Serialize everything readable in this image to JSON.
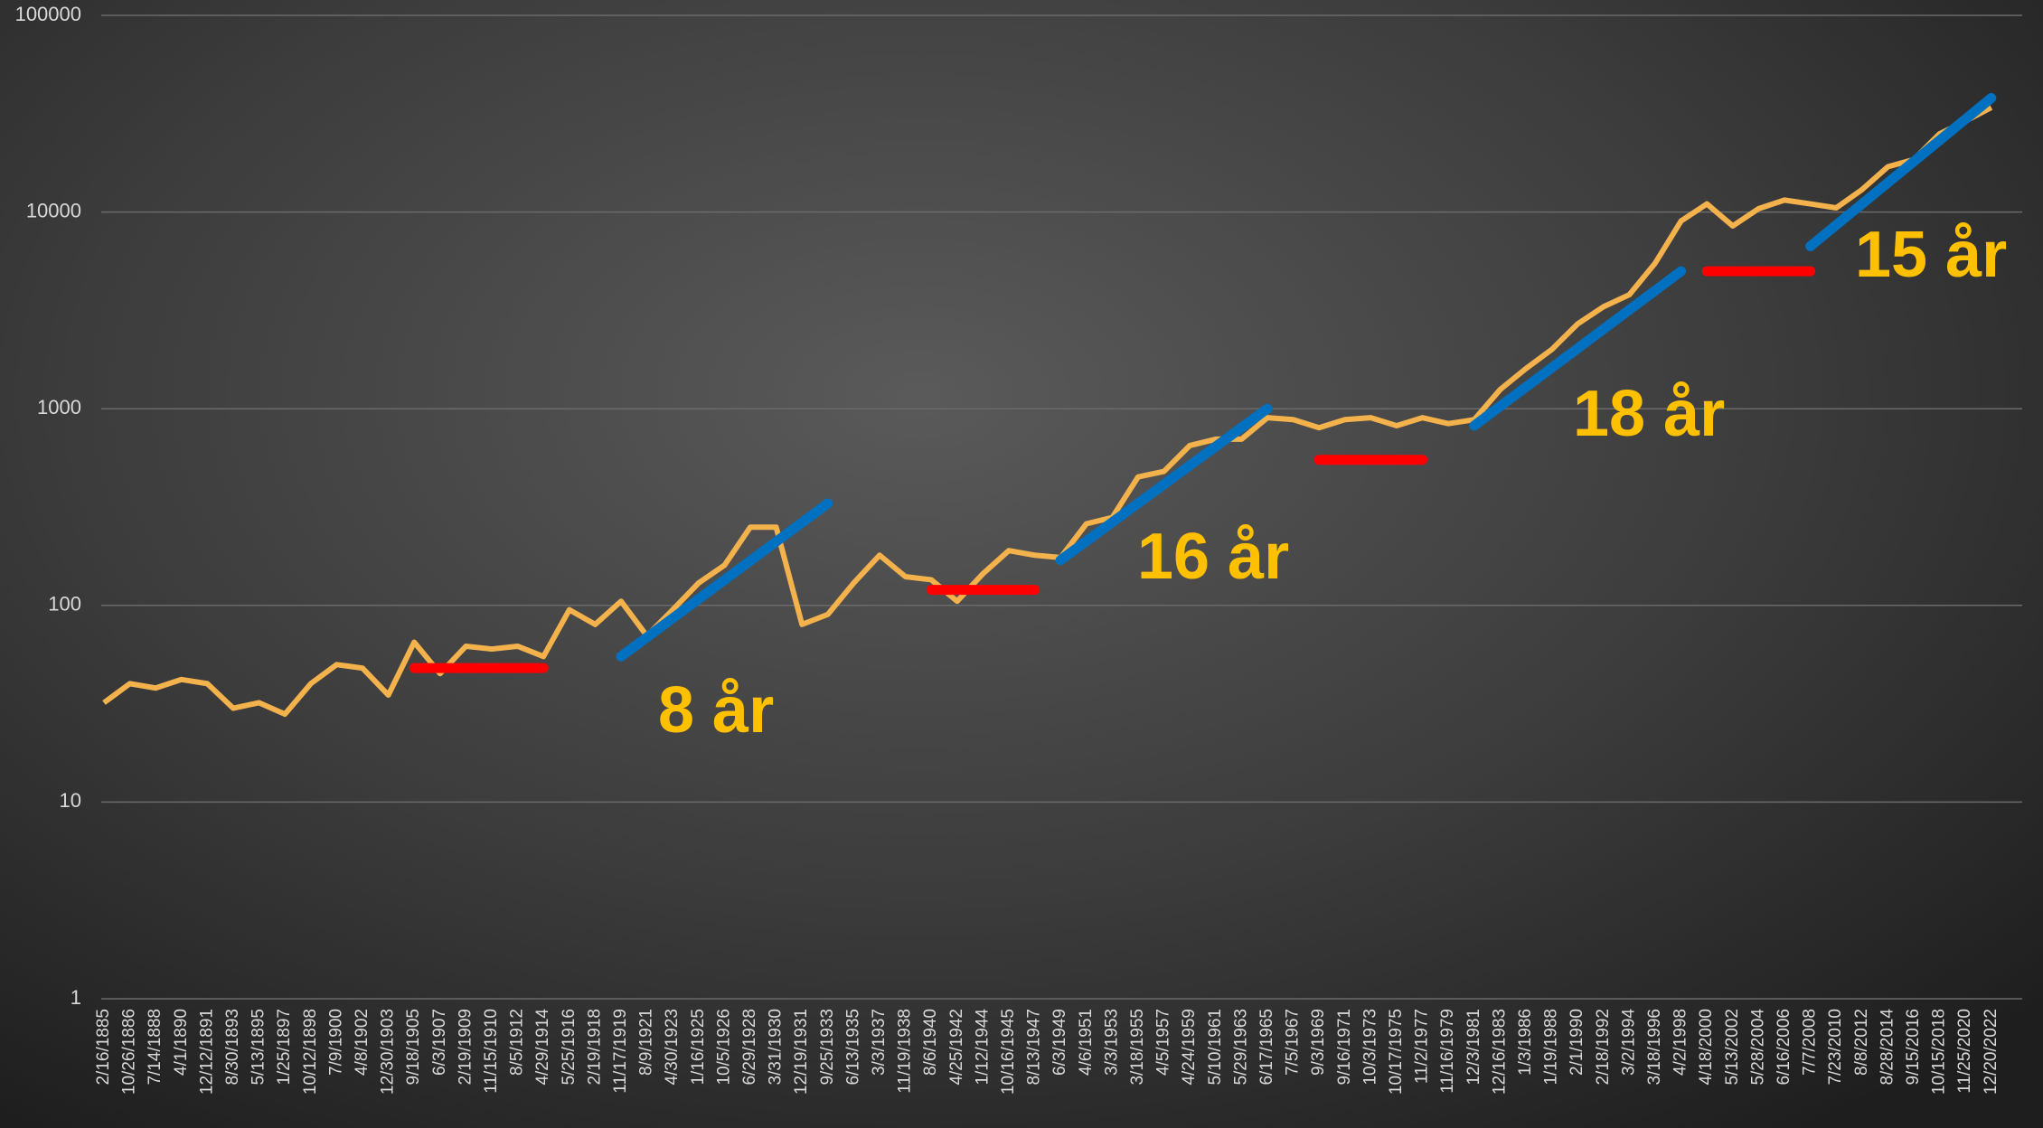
{
  "chart_data": {
    "type": "line",
    "log_scale": true,
    "grid": true,
    "ylim": [
      1,
      100000
    ],
    "yticks": [
      1,
      10,
      100,
      1000,
      10000,
      100000
    ],
    "categories": [
      "2/16/1885",
      "10/26/1886",
      "7/14/1888",
      "4/1/1890",
      "12/12/1891",
      "8/30/1893",
      "5/13/1895",
      "1/25/1897",
      "10/12/1898",
      "7/9/1900",
      "4/8/1902",
      "12/30/1903",
      "9/18/1905",
      "6/3/1907",
      "2/19/1909",
      "11/15/1910",
      "8/5/1912",
      "4/29/1914",
      "5/25/1916",
      "2/19/1918",
      "11/17/1919",
      "8/9/1921",
      "4/30/1923",
      "1/16/1925",
      "10/5/1926",
      "6/29/1928",
      "3/31/1930",
      "12/19/1931",
      "9/25/1933",
      "6/13/1935",
      "3/3/1937",
      "11/19/1938",
      "8/6/1940",
      "4/25/1942",
      "1/12/1944",
      "10/16/1945",
      "8/13/1947",
      "6/3/1949",
      "4/6/1951",
      "3/3/1953",
      "3/18/1955",
      "4/5/1957",
      "4/24/1959",
      "5/10/1961",
      "5/29/1963",
      "6/17/1965",
      "7/5/1967",
      "9/3/1969",
      "9/16/1971",
      "10/3/1973",
      "10/17/1975",
      "11/2/1977",
      "11/16/1979",
      "12/3/1981",
      "12/16/1983",
      "1/3/1986",
      "1/19/1988",
      "2/1/1990",
      "2/18/1992",
      "3/2/1994",
      "3/18/1996",
      "4/2/1998",
      "4/18/2000",
      "5/13/2002",
      "5/28/2004",
      "6/16/2006",
      "7/7/2008",
      "7/23/2010",
      "8/8/2012",
      "8/28/2014",
      "9/15/2016",
      "10/15/2018",
      "11/25/2020",
      "12/20/2022"
    ],
    "series": [
      {
        "color": "#f4b24c",
        "values": [
          32,
          40,
          38,
          42,
          40,
          30,
          32,
          28,
          40,
          50,
          48,
          35,
          65,
          45,
          62,
          60,
          62,
          55,
          95,
          80,
          105,
          70,
          95,
          130,
          160,
          250,
          250,
          80,
          90,
          130,
          180,
          140,
          135,
          105,
          145,
          190,
          180,
          175,
          260,
          280,
          450,
          480,
          650,
          700,
          700,
          900,
          880,
          800,
          880,
          900,
          820,
          900,
          840,
          880,
          1250,
          1600,
          2000,
          2700,
          3300,
          3800,
          5500,
          9000,
          11000,
          8500,
          10400,
          11500,
          11000,
          10500,
          13000,
          17000,
          18500,
          25000,
          29000,
          34000
        ]
      }
    ],
    "trend_lines": [
      {
        "color": "#ff0000",
        "from": "9/18/1905",
        "to": "4/29/1914",
        "from_value": 48,
        "to_value": 48
      },
      {
        "color": "#0070c0",
        "from": "11/17/1919",
        "to": "9/25/1933",
        "from_value": 55,
        "to_value": 330
      },
      {
        "color": "#ff0000",
        "from": "8/6/1940",
        "to": "8/13/1947",
        "from_value": 120,
        "to_value": 120
      },
      {
        "color": "#0070c0",
        "from": "6/3/1949",
        "to": "6/17/1965",
        "from_value": 170,
        "to_value": 1000
      },
      {
        "color": "#ff0000",
        "from": "9/3/1969",
        "to": "11/2/1977",
        "from_value": 550,
        "to_value": 550
      },
      {
        "color": "#0070c0",
        "from": "12/3/1981",
        "to": "4/2/1998",
        "from_value": 820,
        "to_value": 5000
      },
      {
        "color": "#ff0000",
        "from": "4/18/2000",
        "to": "7/7/2008",
        "from_value": 5000,
        "to_value": 5000
      },
      {
        "color": "#0070c0",
        "from": "7/7/2008",
        "to": "12/20/2022",
        "from_value": 6700,
        "to_value": 38000
      }
    ],
    "annotations": [
      "8 år",
      "16 år",
      "18 år",
      "15 år"
    ]
  }
}
